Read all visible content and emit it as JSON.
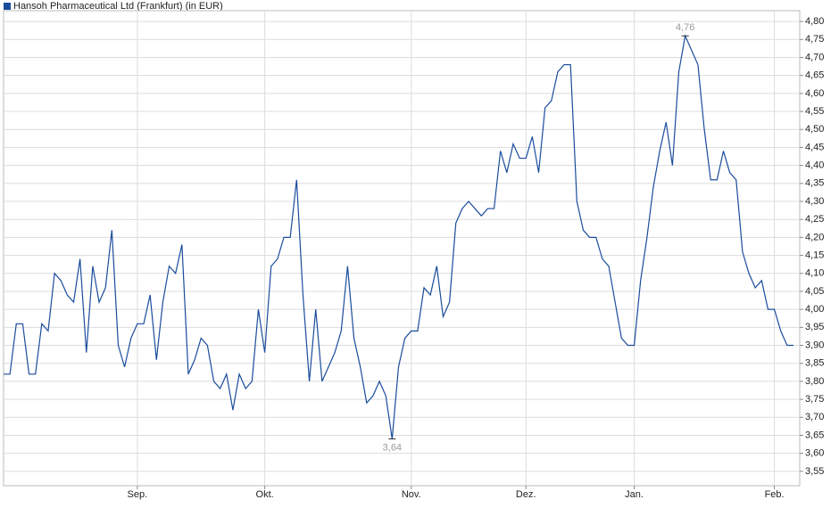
{
  "chart_data": {
    "type": "line",
    "series": [
      {
        "name": "Hansoh Pharmaceutical Ltd (Frankfurt) (in EUR)",
        "color": "#1a4c9c",
        "values": [
          3.82,
          3.82,
          3.96,
          3.96,
          3.82,
          3.82,
          3.96,
          3.94,
          4.1,
          4.08,
          4.04,
          4.02,
          4.14,
          3.88,
          4.12,
          4.02,
          4.06,
          4.22,
          3.9,
          3.84,
          3.92,
          3.96,
          3.96,
          4.04,
          3.86,
          4.02,
          4.12,
          4.1,
          4.18,
          3.82,
          3.86,
          3.92,
          3.9,
          3.8,
          3.78,
          3.82,
          3.72,
          3.82,
          3.78,
          3.8,
          4.0,
          3.88,
          4.12,
          4.14,
          4.2,
          4.2,
          4.36,
          4.04,
          3.8,
          4.0,
          3.8,
          3.84,
          3.88,
          3.94,
          4.12,
          3.92,
          3.84,
          3.74,
          3.76,
          3.8,
          3.76,
          3.64,
          3.84,
          3.92,
          3.94,
          3.94,
          4.06,
          4.04,
          4.12,
          3.98,
          4.02,
          4.24,
          4.28,
          4.3,
          4.28,
          4.26,
          4.28,
          4.28,
          4.44,
          4.38,
          4.46,
          4.42,
          4.42,
          4.48,
          4.38,
          4.56,
          4.58,
          4.66,
          4.68,
          4.68,
          4.3,
          4.22,
          4.2,
          4.2,
          4.14,
          4.12,
          4.02,
          3.92,
          3.9,
          3.9,
          4.08,
          4.2,
          4.34,
          4.44,
          4.52,
          4.4,
          4.66,
          4.76,
          4.72,
          4.68,
          4.5,
          4.36,
          4.36,
          4.44,
          4.38,
          4.36,
          4.16,
          4.1,
          4.06,
          4.08,
          4.0,
          4.0,
          3.94,
          3.9,
          3.9
        ]
      }
    ],
    "categories": [
      null,
      null,
      null,
      null,
      null,
      null,
      null,
      null,
      null,
      null,
      null,
      null,
      null,
      null,
      null,
      null,
      null,
      null,
      null,
      null,
      null,
      "Sep.",
      null,
      null,
      null,
      null,
      null,
      null,
      null,
      null,
      null,
      null,
      null,
      null,
      null,
      null,
      null,
      null,
      null,
      null,
      null,
      "Okt.",
      null,
      null,
      null,
      null,
      null,
      null,
      null,
      null,
      null,
      null,
      null,
      null,
      null,
      null,
      null,
      null,
      null,
      null,
      null,
      null,
      null,
      null,
      "Nov.",
      null,
      null,
      null,
      null,
      null,
      null,
      null,
      null,
      null,
      null,
      null,
      null,
      null,
      null,
      null,
      null,
      null,
      "Dez.",
      null,
      null,
      null,
      null,
      null,
      null,
      null,
      null,
      null,
      null,
      null,
      null,
      null,
      null,
      null,
      null,
      "Jan.",
      null,
      null,
      null,
      null,
      null,
      null,
      null,
      null,
      null,
      null,
      null,
      null,
      null,
      null,
      null,
      null,
      null,
      null,
      null,
      null,
      null,
      "Feb.",
      null,
      null,
      null
    ],
    "annotations": [
      {
        "value": 4.76,
        "label": "4,76"
      },
      {
        "value": 3.64,
        "label": "3,64"
      }
    ],
    "ylim": [
      3.51,
      4.83
    ],
    "yticks": [
      {
        "value": 3.55,
        "label": "3,55"
      },
      {
        "value": 3.6,
        "label": "3,60"
      },
      {
        "value": 3.65,
        "label": "3,65"
      },
      {
        "value": 3.7,
        "label": "3,70"
      },
      {
        "value": 3.75,
        "label": "3,75"
      },
      {
        "value": 3.8,
        "label": "3,80"
      },
      {
        "value": 3.85,
        "label": "3,85"
      },
      {
        "value": 3.9,
        "label": "3,90"
      },
      {
        "value": 3.95,
        "label": "3,95"
      },
      {
        "value": 4.0,
        "label": "4,00"
      },
      {
        "value": 4.05,
        "label": "4,05"
      },
      {
        "value": 4.1,
        "label": "4,10"
      },
      {
        "value": 4.15,
        "label": "4,15"
      },
      {
        "value": 4.2,
        "label": "4,20"
      },
      {
        "value": 4.25,
        "label": "4,25"
      },
      {
        "value": 4.3,
        "label": "4,30"
      },
      {
        "value": 4.35,
        "label": "4,35"
      },
      {
        "value": 4.4,
        "label": "4,40"
      },
      {
        "value": 4.45,
        "label": "4,45"
      },
      {
        "value": 4.5,
        "label": "4,50"
      },
      {
        "value": 4.55,
        "label": "4,55"
      },
      {
        "value": 4.6,
        "label": "4,60"
      },
      {
        "value": 4.65,
        "label": "4,65"
      },
      {
        "value": 4.7,
        "label": "4,70"
      },
      {
        "value": 4.75,
        "label": "4,75"
      },
      {
        "value": 4.8,
        "label": "4,80"
      }
    ],
    "grid": true
  }
}
